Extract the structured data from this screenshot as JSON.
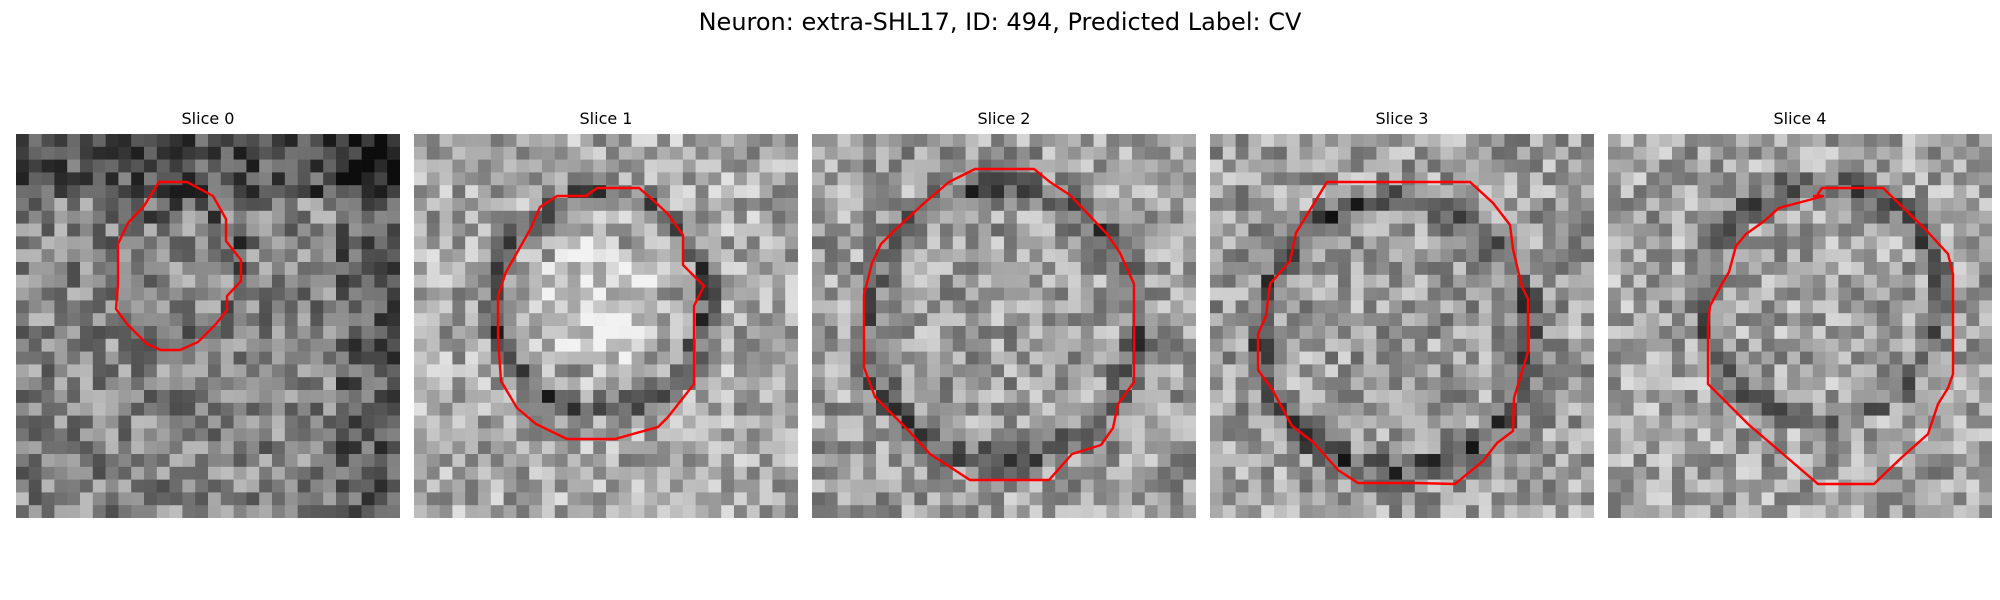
{
  "figure": {
    "title": "Neuron: extra-SHL17, ID: 494, Predicted Label: CV",
    "contour_color": "#ff0000",
    "colormap": "gray"
  },
  "panels": [
    {
      "title": "Slice 0",
      "mean_intensity": 0.52,
      "ring_contrast": 0.22,
      "darken_top_band": true,
      "darken_right_column": true
    },
    {
      "title": "Slice 1",
      "mean_intensity": 0.66,
      "ring_contrast": 0.38,
      "bright_center": true
    },
    {
      "title": "Slice 2",
      "mean_intensity": 0.62,
      "ring_contrast": 0.3
    },
    {
      "title": "Slice 3",
      "mean_intensity": 0.62,
      "ring_contrast": 0.34
    },
    {
      "title": "Slice 4",
      "mean_intensity": 0.64,
      "ring_contrast": 0.3
    }
  ]
}
